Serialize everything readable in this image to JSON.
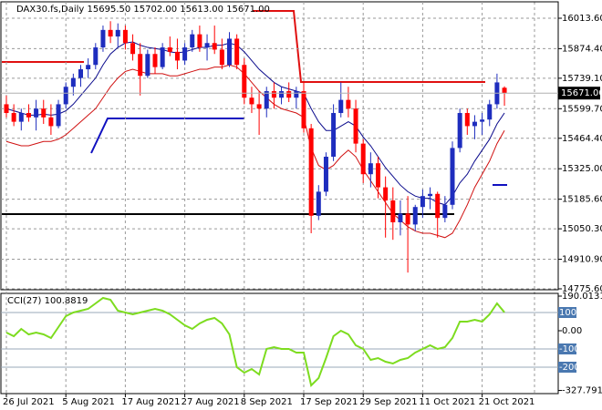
{
  "chart_data": [
    {
      "type": "candlestick",
      "title": "DAX30.fs,Daily  15695.50 15702.00 15613.00 15671.00",
      "categories": [
        "26 Jul 2021",
        null,
        null,
        null,
        null,
        null,
        null,
        null,
        "5 Aug 2021",
        null,
        null,
        null,
        null,
        null,
        null,
        null,
        "17 Aug 2021",
        null,
        null,
        null,
        null,
        null,
        null,
        null,
        "27 Aug 2021",
        null,
        null,
        null,
        null,
        null,
        null,
        null,
        "8 Sep 2021",
        null,
        null,
        null,
        null,
        null,
        null,
        null,
        "17 Sep 2021",
        null,
        null,
        null,
        null,
        null,
        null,
        null,
        "29 Sep 2021",
        null,
        null,
        null,
        null,
        null,
        null,
        null,
        "11 Oct 2021",
        null,
        null,
        null,
        null,
        null,
        null,
        null,
        "21 Oct 2021",
        null,
        null,
        null
      ],
      "open": [
        15620,
        15580,
        15540,
        15580,
        15560,
        15600,
        15560,
        15520,
        15620,
        15700,
        15740,
        15780,
        15800,
        15880,
        15960,
        15930,
        15960,
        15900,
        15850,
        15750,
        15850,
        15790,
        15880,
        15860,
        15820,
        15880,
        15940,
        15880,
        15900,
        15870,
        15800,
        15920,
        15800,
        15650,
        15620,
        15600,
        15680,
        15650,
        15680,
        15650,
        15680,
        15510,
        15110,
        15220,
        15380,
        15580,
        15640,
        15600,
        15440,
        15300,
        15350,
        15240,
        15180,
        15080,
        15120,
        15070,
        15150,
        15200,
        15210,
        15100,
        15160,
        15420,
        15580,
        15520,
        15540,
        15550,
        15620,
        15695.5
      ],
      "high": [
        15660,
        15620,
        15600,
        15620,
        15640,
        15640,
        15620,
        15640,
        15720,
        15760,
        15800,
        15830,
        15900,
        15980,
        16000,
        15990,
        15980,
        15940,
        15900,
        15870,
        15880,
        15900,
        15930,
        15920,
        15900,
        15960,
        15980,
        15940,
        15980,
        15920,
        15950,
        15940,
        15830,
        15700,
        15680,
        15700,
        15720,
        15700,
        15720,
        15700,
        15720,
        15530,
        15250,
        15400,
        15620,
        15720,
        15700,
        15640,
        15460,
        15400,
        15380,
        15290,
        15240,
        15180,
        15200,
        15160,
        15230,
        15240,
        15220,
        15200,
        15450,
        15600,
        15600,
        15570,
        15580,
        15640,
        15760,
        15702
      ],
      "low": [
        15560,
        15520,
        15500,
        15540,
        15500,
        15530,
        15480,
        15510,
        15600,
        15660,
        15700,
        15740,
        15780,
        15860,
        15900,
        15880,
        15870,
        15820,
        15660,
        15740,
        15760,
        15780,
        15840,
        15780,
        15800,
        15860,
        15860,
        15820,
        15850,
        15780,
        15790,
        15780,
        15620,
        15580,
        15480,
        15560,
        15600,
        15620,
        15630,
        15600,
        15490,
        15030,
        15090,
        15200,
        15360,
        15560,
        15560,
        15400,
        15260,
        15240,
        15190,
        15010,
        15000,
        15020,
        14850,
        15040,
        15100,
        15140,
        15010,
        15080,
        15140,
        15400,
        15480,
        15460,
        15480,
        15520,
        15600,
        15613
      ],
      "close": [
        15580,
        15540,
        15580,
        15560,
        15600,
        15560,
        15520,
        15620,
        15700,
        15740,
        15780,
        15800,
        15880,
        15960,
        15930,
        15960,
        15900,
        15850,
        15750,
        15850,
        15790,
        15880,
        15860,
        15820,
        15880,
        15940,
        15880,
        15900,
        15870,
        15800,
        15920,
        15800,
        15650,
        15620,
        15600,
        15680,
        15650,
        15680,
        15650,
        15680,
        15510,
        15110,
        15220,
        15380,
        15580,
        15640,
        15600,
        15440,
        15300,
        15350,
        15240,
        15180,
        15080,
        15120,
        15070,
        15150,
        15200,
        15210,
        15100,
        15160,
        15420,
        15580,
        15520,
        15540,
        15550,
        15620,
        15720,
        15671
      ],
      "up_color": "#1e2dbe",
      "down_color": "#ff0000",
      "overlays": [
        {
          "color": "#0a0a8c",
          "values": [
            15600,
            15590,
            15580,
            15570,
            15570,
            15575,
            15570,
            15575,
            15590,
            15620,
            15660,
            15700,
            15740,
            15800,
            15850,
            15880,
            15900,
            15905,
            15890,
            15880,
            15875,
            15870,
            15860,
            15855,
            15860,
            15870,
            15880,
            15880,
            15890,
            15890,
            15900,
            15890,
            15860,
            15820,
            15780,
            15750,
            15720,
            15700,
            15690,
            15680,
            15670,
            15600,
            15540,
            15500,
            15500,
            15520,
            15540,
            15520,
            15470,
            15430,
            15380,
            15330,
            15290,
            15250,
            15220,
            15200,
            15190,
            15190,
            15170,
            15160,
            15200,
            15260,
            15300,
            15360,
            15410,
            15460,
            15530,
            15580
          ]
        },
        {
          "color": "#d01010",
          "values": [
            15450,
            15440,
            15430,
            15430,
            15440,
            15450,
            15450,
            15460,
            15480,
            15510,
            15540,
            15570,
            15600,
            15650,
            15700,
            15740,
            15770,
            15780,
            15770,
            15760,
            15760,
            15760,
            15750,
            15750,
            15760,
            15770,
            15780,
            15780,
            15790,
            15790,
            15800,
            15790,
            15760,
            15720,
            15680,
            15650,
            15620,
            15600,
            15590,
            15580,
            15560,
            15420,
            15340,
            15320,
            15340,
            15380,
            15410,
            15380,
            15320,
            15270,
            15220,
            15170,
            15120,
            15090,
            15060,
            15040,
            15030,
            15030,
            15020,
            15010,
            15030,
            15090,
            15160,
            15240,
            15300,
            15360,
            15440,
            15500
          ]
        }
      ],
      "ylim": [
        14771.5,
        16088.6
      ],
      "yticks": [
        {
          "value": 16013.6,
          "label": "16013.60"
        },
        {
          "value": 15874.4,
          "label": "15874.40"
        },
        {
          "value": 15739.1,
          "label": "15739.10"
        },
        {
          "value": 15599.7,
          "label": "15599.70"
        },
        {
          "value": 15464.4,
          "label": "15464.40"
        },
        {
          "value": 15325.0,
          "label": "15325.00"
        },
        {
          "value": 15185.6,
          "label": "15185.60"
        },
        {
          "value": 15050.3,
          "label": "15050.30"
        },
        {
          "value": 14910.9,
          "label": "14910.90"
        },
        {
          "value": 14775.6,
          "label": "14775.60"
        }
      ],
      "last_price": {
        "value": 15671.0,
        "label": "15671.00"
      },
      "grid": true
    },
    {
      "type": "line",
      "title": "CCI(27) 100.8819",
      "color": "#7ddc1f",
      "values": [
        -10,
        -30,
        10,
        -20,
        -10,
        -20,
        -40,
        20,
        80,
        100,
        110,
        120,
        150,
        180,
        170,
        110,
        100,
        90,
        100,
        110,
        120,
        110,
        90,
        60,
        30,
        10,
        40,
        60,
        70,
        40,
        -20,
        -200,
        -230,
        -210,
        -240,
        -100,
        -90,
        -100,
        -100,
        -120,
        -120,
        -300,
        -260,
        -150,
        -30,
        0,
        -20,
        -80,
        -100,
        -160,
        -150,
        -170,
        -180,
        -160,
        -150,
        -120,
        -100,
        -80,
        -100,
        -90,
        -40,
        50,
        50,
        60,
        50,
        90,
        150,
        100.8819
      ],
      "ylim": [
        -345,
        205
      ],
      "yticks": [
        190.0131,
        {
          "value": 0,
          "label": "0.00"
        },
        -327.7911
      ],
      "levels": [
        100,
        -100,
        -200
      ]
    }
  ]
}
